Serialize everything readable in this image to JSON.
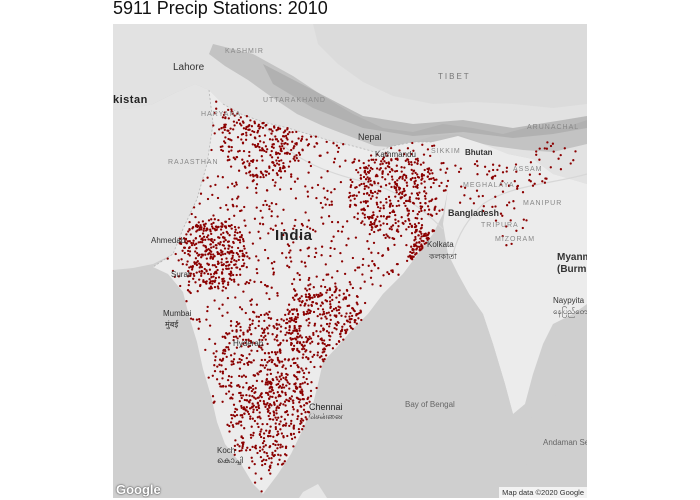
{
  "title": "5911 Precip Stations: 2010",
  "attribution": "Map data ©2020 Google",
  "google_logo": "Google",
  "colors": {
    "station": "#8b0000",
    "land": "#ececec",
    "water": "#cfcfcf",
    "mountains": "#b9b9b9"
  },
  "station_count": 5911,
  "labels": {
    "lahore": "Lahore",
    "pakistan": "kistan",
    "tibet": "TIBET",
    "nepal": "Nepal",
    "kathmandu": "Kathmandu",
    "bhutan": "Bhutan",
    "sikkim": "SIKKIM",
    "arunachal": "ARUNACHAL",
    "meghalaya": "MEGHALAYA",
    "assam": "ASSAM",
    "manipur": "MANIPUR",
    "bangladesh": "Bangladesh",
    "tripura": "TRIPURA",
    "mizoram": "MIZORAM",
    "india": "India",
    "kolkata": "Kolkata",
    "kolkata_bn": "কলকাতা",
    "myanmar": "Myanm",
    "burma": "(Burm",
    "naypyitaw": "Naypyita",
    "naypyitaw_my": "နေပြည်တော်",
    "surat": "Surat",
    "mumbai": "Mumbai",
    "mumbai_local": "मुंबई",
    "chennai": "Chennai",
    "chennai_ta": "சென்னை",
    "bay": "Bay of Bengal",
    "andaman": "Andaman Se",
    "kochi": "Koch",
    "kochi_ml": "കൊച്ചി",
    "hyderabad": "Hyderab",
    "ahmedabad": "Ahmedab",
    "rajasthan": "RAJASTHAN",
    "haryana": "HARYANA",
    "uttarakhand": "UTTARAKHAND",
    "kashmir": "KASHMIR"
  }
}
